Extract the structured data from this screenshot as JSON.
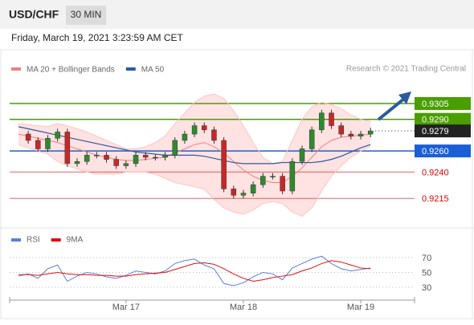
{
  "chart_data": {
    "type": "candlestick",
    "title": "USD/CHF",
    "timeframe": "30 MIN",
    "subtitle": "Friday, March 19, 2021 3:23:59 AM CET",
    "source": "Research © 2021 Trading Central",
    "x": [
      -22,
      -20,
      -18,
      -16,
      -14,
      -12,
      -10,
      -8,
      -6,
      -4,
      -2,
      0,
      2,
      4,
      6,
      8,
      10,
      12,
      14,
      16,
      18,
      20,
      22,
      24,
      26,
      28,
      30,
      32,
      34,
      36,
      38,
      40,
      42,
      44,
      46,
      48,
      50
    ],
    "xlim": [
      -23.8,
      59
    ],
    "xticks": [
      {
        "value": 0,
        "label": "Mar 17"
      },
      {
        "value": 24,
        "label": "Mar 18"
      },
      {
        "value": 48,
        "label": "Mar 19"
      }
    ],
    "ylim": [
      0.9187,
      0.9356
    ],
    "price": {
      "up_color": "#2e8b2e",
      "down_color": "#c62828",
      "values": [
        0.9276,
        0.927,
        0.9262,
        0.9272,
        0.9278,
        0.9248,
        0.925,
        0.9256,
        0.9256,
        0.9252,
        0.9246,
        0.9248,
        0.9256,
        0.9254,
        0.9254,
        0.9256,
        0.927,
        0.9276,
        0.9284,
        0.928,
        0.927,
        0.9224,
        0.9218,
        0.922,
        0.9228,
        0.9236,
        0.9236,
        0.9222,
        0.925,
        0.9262,
        0.928,
        0.9296,
        0.9284,
        0.9276,
        0.9274,
        0.9276,
        0.9279
      ]
    },
    "band_color": "#ffd6d6",
    "series": [
      {
        "name": "MA 20 + Bollinger Bands",
        "color": "#f08080",
        "values": [
          0.9276,
          0.9274,
          0.9272,
          0.927,
          0.9268,
          0.9265,
          0.9262,
          0.9259,
          0.9256,
          0.9254,
          0.9252,
          0.9251,
          0.9251,
          0.9252,
          0.9253,
          0.9254,
          0.9258,
          0.9262,
          0.9266,
          0.9268,
          0.9264,
          0.9258,
          0.925,
          0.9242,
          0.9236,
          0.9232,
          0.923,
          0.923,
          0.9236,
          0.9244,
          0.9254,
          0.9264,
          0.927,
          0.9273,
          0.9274,
          0.9275,
          0.9276
        ]
      },
      {
        "color": "#ffc4c4",
        "values": [
          0.9286,
          0.9285,
          0.9284,
          0.9283,
          0.9286,
          0.9284,
          0.9281,
          0.9278,
          0.9274,
          0.927,
          0.9266,
          0.9262,
          0.9262,
          0.9264,
          0.9268,
          0.9274,
          0.9286,
          0.9296,
          0.9306,
          0.9312,
          0.9314,
          0.931,
          0.9298,
          0.9284,
          0.9268,
          0.9254,
          0.9248,
          0.925,
          0.927,
          0.929,
          0.9302,
          0.9306,
          0.9304,
          0.93,
          0.9294,
          0.929,
          0.9288
        ]
      },
      {
        "color": "#ffc4c4",
        "values": [
          0.9266,
          0.9263,
          0.926,
          0.9257,
          0.925,
          0.9246,
          0.9243,
          0.924,
          0.9238,
          0.9238,
          0.9238,
          0.924,
          0.924,
          0.924,
          0.9238,
          0.9234,
          0.923,
          0.9228,
          0.9226,
          0.9224,
          0.9214,
          0.9206,
          0.9202,
          0.92,
          0.9204,
          0.921,
          0.9212,
          0.921,
          0.9202,
          0.9198,
          0.9206,
          0.9222,
          0.9236,
          0.9246,
          0.9254,
          0.926,
          0.9264
        ]
      },
      {
        "name": "MA 50",
        "color": "#2c5aa0",
        "values": [
          0.9283,
          0.9281,
          0.9279,
          0.9277,
          0.9275,
          0.9273,
          0.9271,
          0.9269,
          0.9267,
          0.9265,
          0.9263,
          0.9261,
          0.9259,
          0.9258,
          0.9257,
          0.9256,
          0.9256,
          0.9256,
          0.9256,
          0.9255,
          0.9253,
          0.9251,
          0.9249,
          0.9248,
          0.9248,
          0.9248,
          0.9248,
          0.9249,
          0.9249,
          0.9249,
          0.9249,
          0.925,
          0.9252,
          0.9255,
          0.9259,
          0.9263,
          0.9266
        ]
      }
    ],
    "levels": [
      {
        "value": 0.9305,
        "color": "#4a9e00",
        "style": "box",
        "line": "solid"
      },
      {
        "value": 0.929,
        "label": "0.9290",
        "color": "#4a9e00",
        "style": "box",
        "line": "solid"
      },
      {
        "value": 0.9279,
        "color": "#222222",
        "style": "box",
        "line": "dotted"
      },
      {
        "value": 0.926,
        "label": "0.9260",
        "color": "#1a5fd6",
        "style": "box",
        "line": "solid"
      },
      {
        "value": 0.924,
        "label": "0.9240",
        "color": "#e00000",
        "style": "text",
        "line": "solid"
      },
      {
        "value": 0.9215,
        "color": "#e00000",
        "style": "text",
        "line": "solid"
      }
    ],
    "rsi": {
      "ylim": [
        19,
        82
      ],
      "yticks": [
        30,
        50,
        70
      ],
      "series": [
        {
          "name": "RSI",
          "color": "#5b7fd6",
          "values": [
            45,
            48,
            42,
            55,
            60,
            38,
            45,
            50,
            48,
            44,
            42,
            46,
            52,
            50,
            48,
            52,
            62,
            66,
            68,
            60,
            55,
            35,
            32,
            36,
            44,
            50,
            48,
            40,
            56,
            62,
            68,
            72,
            62,
            55,
            52,
            54,
            56
          ]
        },
        {
          "name": "9MA",
          "color": "#e01010",
          "values": [
            47,
            47,
            46,
            48,
            50,
            48,
            47,
            47,
            46,
            46,
            45,
            45,
            47,
            48,
            49,
            50,
            54,
            58,
            62,
            63,
            61,
            55,
            48,
            42,
            38,
            40,
            43,
            45,
            47,
            52,
            56,
            62,
            66,
            64,
            60,
            56,
            55
          ]
        }
      ]
    }
  }
}
